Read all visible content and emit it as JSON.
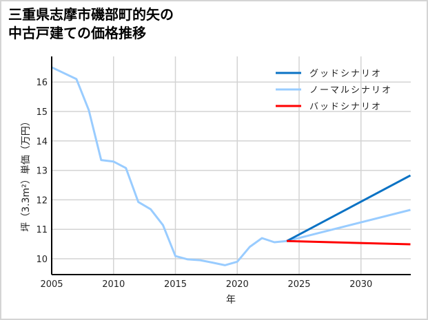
{
  "title_line1": "三重県志摩市磯部町的矢の",
  "title_line2": "中古戸建ての価格推移",
  "chart_data": {
    "type": "line",
    "title": "三重県志摩市磯部町的矢の中古戸建ての価格推移",
    "xlabel": "年",
    "ylabel": "坪（3.3m²）単価（万円）",
    "xlim": [
      2005,
      2034
    ],
    "ylim": [
      9.5,
      16.8
    ],
    "xticks": [
      2005,
      2010,
      2015,
      2020,
      2025,
      2030
    ],
    "yticks": [
      10,
      11,
      12,
      13,
      14,
      15,
      16
    ],
    "grid": true,
    "legend_position": "upper right",
    "series": [
      {
        "name": "グッドシナリオ",
        "color": "#0a72c4",
        "x": [
          2024,
          2034
        ],
        "values": [
          10.6,
          12.83
        ]
      },
      {
        "name": "ノーマルシナリオ",
        "color": "#99ccff",
        "x": [
          2005,
          2007,
          2008,
          2009,
          2010,
          2011,
          2012,
          2013,
          2014,
          2015,
          2016,
          2017,
          2018,
          2019,
          2020,
          2021,
          2022,
          2023,
          2024,
          2034
        ],
        "values": [
          16.5,
          16.1,
          15.05,
          13.35,
          13.3,
          13.08,
          11.93,
          11.68,
          11.14,
          10.09,
          9.98,
          9.95,
          9.87,
          9.78,
          9.9,
          10.4,
          10.7,
          10.56,
          10.6,
          11.66
        ]
      },
      {
        "name": "バッドシナリオ",
        "color": "#ff0000",
        "x": [
          2024,
          2034
        ],
        "values": [
          10.6,
          10.49
        ]
      }
    ]
  }
}
